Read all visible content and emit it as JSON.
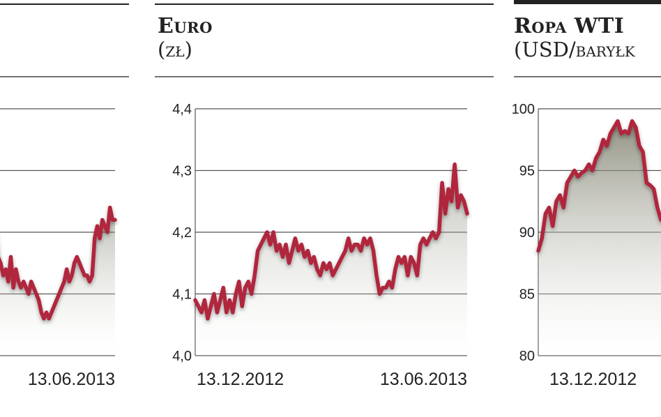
{
  "chart_data": [
    {
      "type": "line",
      "title": "",
      "unit": "",
      "ylim": [
        4.0,
        4.4
      ],
      "yticks": [],
      "xlabels": [
        "13.06.2013"
      ],
      "grid": true,
      "line_color": "#b0253c",
      "values": [
        4.17,
        4.2,
        4.16,
        4.15,
        4.13,
        4.14,
        4.12,
        4.16,
        4.11,
        4.14,
        4.12,
        4.11,
        4.12,
        4.11,
        4.1,
        4.12,
        4.11,
        4.1,
        4.09,
        4.07,
        4.06,
        4.07,
        4.06,
        4.07,
        4.08,
        4.09,
        4.1,
        4.11,
        4.12,
        4.14,
        4.12,
        4.13,
        4.15,
        4.16,
        4.15,
        4.14,
        4.13,
        4.13,
        4.12,
        4.13,
        4.19,
        4.21,
        4.19,
        4.22,
        4.21,
        4.2,
        4.24,
        4.22,
        4.22
      ]
    },
    {
      "type": "line",
      "title": "Euro",
      "unit": "(zł)",
      "ylim": [
        4.0,
        4.4
      ],
      "yticks": [
        "4,0",
        "4,1",
        "4,2",
        "4,3",
        "4,4"
      ],
      "xlabels": [
        "13.12.2012",
        "13.06.2013"
      ],
      "grid": true,
      "line_color": "#b0253c",
      "values": [
        4.09,
        4.08,
        4.07,
        4.09,
        4.06,
        4.08,
        4.1,
        4.07,
        4.09,
        4.11,
        4.07,
        4.09,
        4.07,
        4.1,
        4.12,
        4.08,
        4.11,
        4.12,
        4.1,
        4.13,
        4.17,
        4.18,
        4.19,
        4.2,
        4.18,
        4.2,
        4.17,
        4.18,
        4.16,
        4.18,
        4.15,
        4.17,
        4.19,
        4.17,
        4.18,
        4.16,
        4.17,
        4.15,
        4.16,
        4.14,
        4.13,
        4.15,
        4.14,
        4.15,
        4.13,
        4.14,
        4.15,
        4.16,
        4.17,
        4.19,
        4.17,
        4.18,
        4.18,
        4.17,
        4.19,
        4.18,
        4.19,
        4.17,
        4.13,
        4.1,
        4.11,
        4.11,
        4.12,
        4.11,
        4.14,
        4.16,
        4.15,
        4.16,
        4.13,
        4.16,
        4.15,
        4.13,
        4.18,
        4.19,
        4.18,
        4.19,
        4.2,
        4.19,
        4.2,
        4.28,
        4.23,
        4.27,
        4.25,
        4.31,
        4.24,
        4.26,
        4.25,
        4.23
      ]
    },
    {
      "type": "area",
      "title": "Ropa WTI",
      "unit": "(USD/baryłk",
      "ylim": [
        80,
        100
      ],
      "yticks": [
        "80",
        "85",
        "90",
        "95",
        "100"
      ],
      "xlabels": [
        "13.12.2012"
      ],
      "grid": true,
      "line_color": "#b0253c",
      "values": [
        88.5,
        89.5,
        91.5,
        92,
        90.5,
        92.5,
        93,
        92,
        94,
        94.5,
        95,
        94.5,
        94.8,
        95,
        95.5,
        95,
        96,
        96.5,
        97.5,
        97,
        98,
        98.5,
        99,
        98,
        98.2,
        98,
        99,
        98.5,
        97,
        96.5,
        94,
        93.8,
        93.5,
        92,
        91
      ]
    }
  ]
}
